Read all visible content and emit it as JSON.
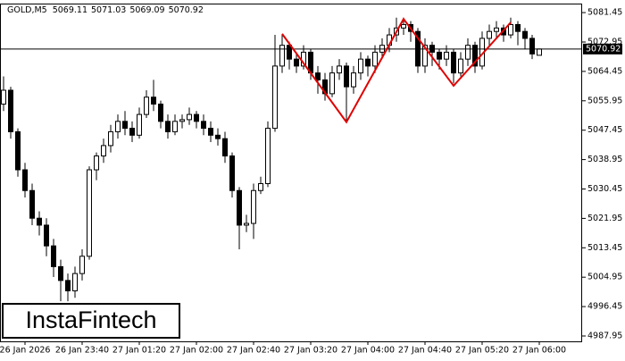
{
  "chart_data": {
    "type": "candlestick",
    "symbol": "GOLD,M5",
    "watermark": "InstaFintech",
    "categories": [
      null,
      null,
      null,
      "26 Jan 2026",
      null,
      null,
      null,
      null,
      null,
      null,
      null,
      "26 Jan 23:40",
      null,
      null,
      null,
      null,
      null,
      null,
      null,
      "27 Jan 01:20",
      null,
      null,
      null,
      null,
      null,
      null,
      null,
      "27 Jan 02:00",
      null,
      null,
      null,
      null,
      null,
      null,
      null,
      "27 Jan 02:40",
      null,
      null,
      null,
      null,
      null,
      null,
      null,
      "27 Jan 03:20",
      null,
      null,
      null,
      null,
      null,
      null,
      null,
      "27 Jan 04:00",
      null,
      null,
      null,
      null,
      null,
      null,
      null,
      "27 Jan 04:40",
      null,
      null,
      null,
      null,
      null,
      null,
      null,
      "27 Jan 05:20",
      null,
      null,
      null,
      null,
      null,
      null,
      null,
      "27 Jan 06:00"
    ],
    "open": [
      5055,
      5059,
      5047,
      5036,
      5030,
      5022,
      5020,
      5014,
      5008,
      5004,
      5001,
      5006,
      5011,
      5036,
      5040,
      5043,
      5047,
      5050,
      5048,
      5046,
      5052,
      5057,
      5055,
      5050,
      5047,
      5050,
      5050.5,
      5052,
      5050,
      5048,
      5046,
      5045,
      5040,
      5030,
      5020,
      5020.5,
      5030,
      5032,
      5048,
      5066,
      5072,
      5068,
      5066,
      5070,
      5064,
      5062,
      5058,
      5064,
      5066,
      5060,
      5064,
      5068,
      5066,
      5070,
      5072,
      5075,
      5077,
      5078,
      5076,
      5066,
      5072,
      5070,
      5068,
      5070,
      5064,
      5068,
      5072,
      5066,
      5074,
      5076,
      5077,
      5075,
      5078,
      5076,
      5074,
      5069.11
    ],
    "high": [
      5063,
      5060,
      5048,
      5038,
      5032,
      5024,
      5022,
      5016,
      5010,
      5006,
      5008,
      5013,
      5037,
      5041,
      5045,
      5049,
      5052,
      5053,
      5050,
      5054,
      5059,
      5062,
      5056,
      5052,
      5052,
      5052,
      5054,
      5053,
      5052,
      5050,
      5048,
      5047,
      5041,
      5031,
      5023,
      5032,
      5034,
      5050,
      5075,
      5075,
      5073,
      5070,
      5072,
      5071,
      5066,
      5064,
      5066,
      5068,
      5067,
      5066,
      5070,
      5069,
      5072,
      5074,
      5077,
      5080,
      5080,
      5079,
      5077,
      5074,
      5073,
      5071,
      5072,
      5071,
      5070,
      5074,
      5073,
      5076,
      5078,
      5079,
      5078,
      5080,
      5079,
      5077,
      5075,
      5071.03
    ],
    "low": [
      5053,
      5045,
      5034,
      5028,
      5020,
      5017,
      5011,
      5005,
      4998,
      4998,
      4999,
      5004,
      5010,
      5033,
      5038,
      5041,
      5045,
      5046,
      5044,
      5045,
      5051,
      5053,
      5048,
      5045,
      5046,
      5048,
      5049,
      5048,
      5046,
      5044,
      5043,
      5038,
      5028,
      5013,
      5018,
      5016,
      5029,
      5031,
      5047,
      5064,
      5065,
      5064,
      5065,
      5062,
      5058,
      5056,
      5057,
      5062,
      5050,
      5058,
      5062,
      5063,
      5064,
      5068,
      5070,
      5073,
      5075,
      5073,
      5064,
      5064,
      5066,
      5065,
      5066,
      5061,
      5063,
      5066,
      5064,
      5065,
      5072,
      5074,
      5073,
      5074,
      5072,
      5071,
      5068,
      5069.09
    ],
    "close": [
      5059,
      5047,
      5036,
      5030,
      5022,
      5020,
      5014,
      5008,
      5004,
      5001,
      5006,
      5011,
      5036,
      5040,
      5043,
      5047,
      5050,
      5048,
      5046,
      5052,
      5057,
      5055,
      5050,
      5047,
      5050,
      5050.5,
      5052,
      5050,
      5048,
      5046,
      5045,
      5040,
      5030,
      5020,
      5020.5,
      5030,
      5032,
      5048,
      5066,
      5072,
      5068,
      5066,
      5070,
      5064,
      5062,
      5058,
      5064,
      5066,
      5060,
      5064,
      5068,
      5066,
      5070,
      5072,
      5075,
      5077,
      5078,
      5076,
      5066,
      5072,
      5070,
      5068,
      5070,
      5064,
      5068,
      5072,
      5066,
      5074,
      5076,
      5077,
      5075,
      5078,
      5076,
      5074,
      5069.5,
      5070.92
    ],
    "up_color": "#ffffff",
    "down_color": "#000000",
    "edge_color": "#000000",
    "ylim": [
      4986.4,
      5083.8
    ],
    "yticks": [
      4987.95,
      4996.45,
      5004.95,
      5013.45,
      5021.95,
      5030.45,
      5038.95,
      5047.45,
      5055.95,
      5064.45,
      5072.95,
      5081.45
    ],
    "pattern_line": {
      "color": "#e00000",
      "x": [
        39,
        48,
        56,
        63,
        71
      ],
      "y": [
        5075.3,
        5049.8,
        5079.6,
        5060.3,
        5078.6
      ]
    }
  }
}
